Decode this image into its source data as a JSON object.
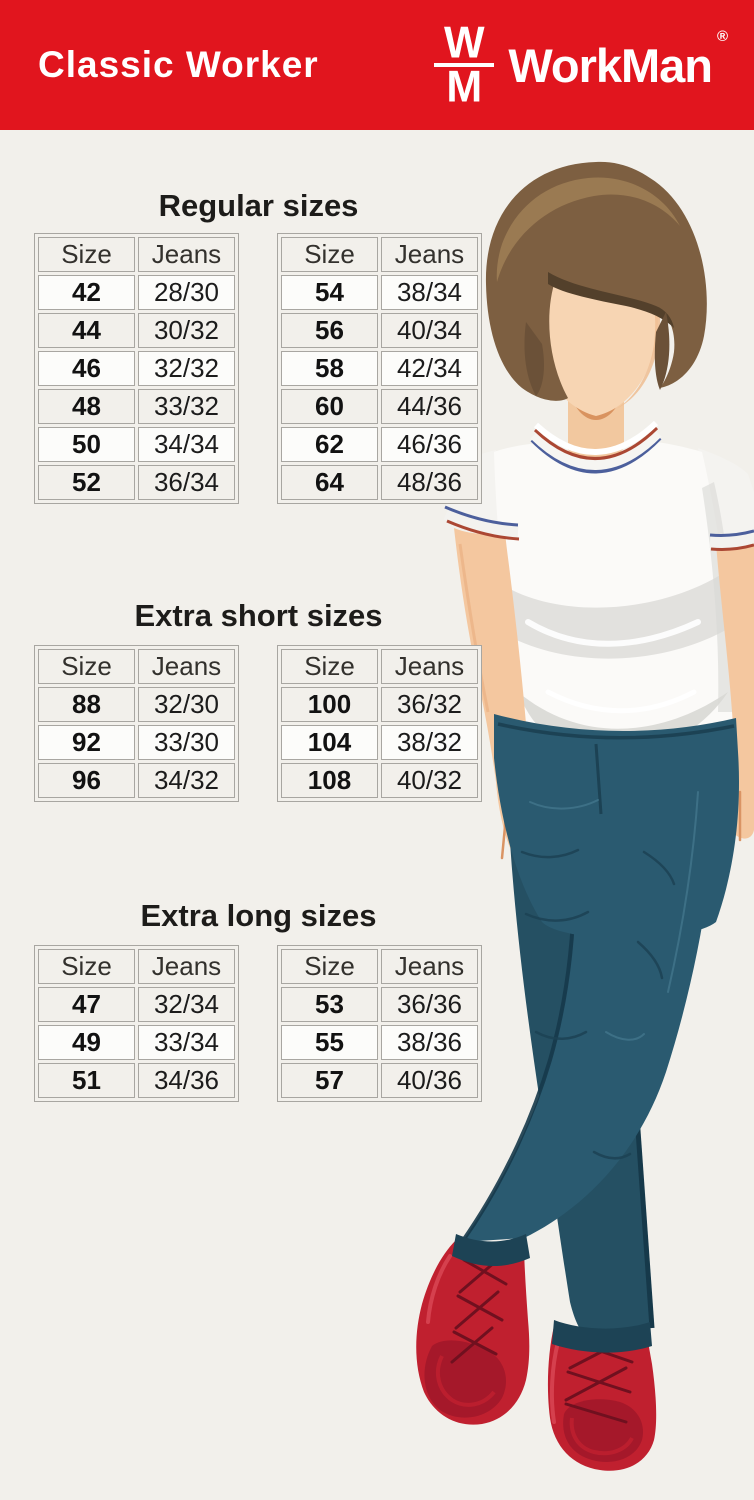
{
  "header": {
    "product_line": "Classic Worker",
    "monogram_top": "W",
    "monogram_bottom": "M",
    "brand": "WorkMan",
    "registered_mark": "®"
  },
  "sections": [
    {
      "title": "Regular sizes",
      "columns": [
        "Size",
        "Jeans"
      ],
      "tables": [
        {
          "rows": [
            [
              "42",
              "28/30"
            ],
            [
              "44",
              "30/32"
            ],
            [
              "46",
              "32/32"
            ],
            [
              "48",
              "33/32"
            ],
            [
              "50",
              "34/34"
            ],
            [
              "52",
              "36/34"
            ]
          ]
        },
        {
          "rows": [
            [
              "54",
              "38/34"
            ],
            [
              "56",
              "40/34"
            ],
            [
              "58",
              "42/34"
            ],
            [
              "60",
              "44/36"
            ],
            [
              "62",
              "46/36"
            ],
            [
              "64",
              "48/36"
            ]
          ]
        }
      ]
    },
    {
      "title": "Extra short sizes",
      "columns": [
        "Size",
        "Jeans"
      ],
      "tables": [
        {
          "rows": [
            [
              "88",
              "32/30"
            ],
            [
              "92",
              "33/30"
            ],
            [
              "96",
              "34/32"
            ]
          ]
        },
        {
          "rows": [
            [
              "100",
              "36/32"
            ],
            [
              "104",
              "38/32"
            ],
            [
              "108",
              "40/32"
            ]
          ]
        }
      ]
    },
    {
      "title": "Extra long sizes",
      "columns": [
        "Size",
        "Jeans"
      ],
      "tables": [
        {
          "rows": [
            [
              "47",
              "32/34"
            ],
            [
              "49",
              "33/34"
            ],
            [
              "51",
              "34/36"
            ]
          ]
        },
        {
          "rows": [
            [
              "53",
              "36/36"
            ],
            [
              "55",
              "38/36"
            ],
            [
              "57",
              "40/36"
            ]
          ]
        }
      ]
    }
  ],
  "chart_data": [
    {
      "type": "table",
      "title": "Regular sizes",
      "columns": [
        "Size",
        "Jeans"
      ],
      "rows": [
        [
          "42",
          "28/30"
        ],
        [
          "44",
          "30/32"
        ],
        [
          "46",
          "32/32"
        ],
        [
          "48",
          "33/32"
        ],
        [
          "50",
          "34/34"
        ],
        [
          "52",
          "36/34"
        ],
        [
          "54",
          "38/34"
        ],
        [
          "56",
          "40/34"
        ],
        [
          "58",
          "42/34"
        ],
        [
          "60",
          "44/36"
        ],
        [
          "62",
          "46/36"
        ],
        [
          "64",
          "48/36"
        ]
      ]
    },
    {
      "type": "table",
      "title": "Extra short sizes",
      "columns": [
        "Size",
        "Jeans"
      ],
      "rows": [
        [
          "88",
          "32/30"
        ],
        [
          "92",
          "33/30"
        ],
        [
          "96",
          "34/32"
        ],
        [
          "100",
          "36/32"
        ],
        [
          "104",
          "38/32"
        ],
        [
          "108",
          "40/32"
        ]
      ]
    },
    {
      "type": "table",
      "title": "Extra long sizes",
      "columns": [
        "Size",
        "Jeans"
      ],
      "rows": [
        [
          "47",
          "32/34"
        ],
        [
          "49",
          "33/34"
        ],
        [
          "51",
          "34/36"
        ],
        [
          "53",
          "36/36"
        ],
        [
          "55",
          "38/36"
        ],
        [
          "57",
          "40/36"
        ]
      ]
    }
  ],
  "illustration": {
    "description": "young man in white t-shirt, dark teal jeans, red lace-up boots, legs crossed"
  },
  "colors": {
    "header_red": "#e1151e",
    "background": "#f2f0eb",
    "row_white": "#fcfcfa",
    "table_border": "#a8a6a1",
    "jeans_teal": "#2a5a70",
    "boot_red": "#c0202f",
    "hair_brown": "#7d5f41",
    "skin": "#f4c79f"
  }
}
